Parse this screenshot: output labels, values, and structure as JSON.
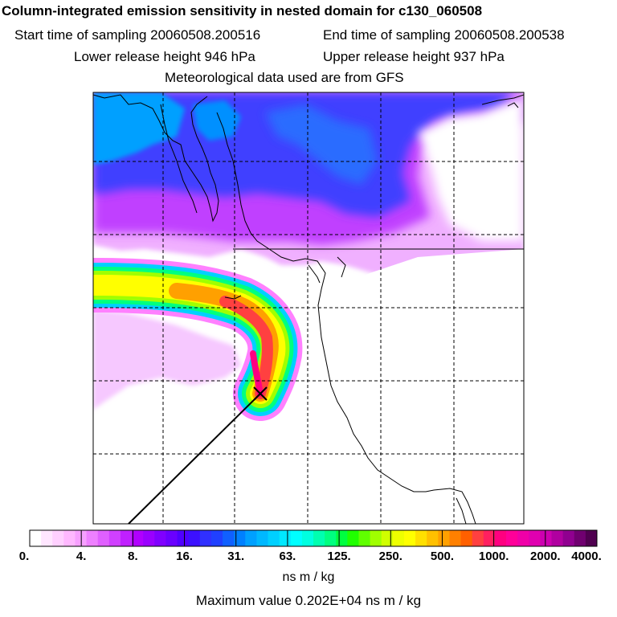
{
  "header": {
    "title": "Column-integrated emission sensitivity in nested domain for c130_060508",
    "start_time": "Start time of sampling 20060508.200516",
    "end_time": "End time of sampling 20060508.200538",
    "lower_height": "Lower release height  946 hPa",
    "upper_height": "Upper release height  937 hPa",
    "met_data": "Meteorological data used are from GFS"
  },
  "colorbar": {
    "labels": [
      "0.",
      "4.",
      "8.",
      "16.",
      "31.",
      "63.",
      "125.",
      "250.",
      "500.",
      "1000.",
      "2000.",
      "4000."
    ],
    "colors": [
      "#ffffff",
      "#ffe6ff",
      "#ffd0ff",
      "#ffb8ff",
      "#f7a0ff",
      "#ee80ff",
      "#e060ff",
      "#d040ff",
      "#c020ff",
      "#b000ff",
      "#9a00ff",
      "#8000ff",
      "#6a00ff",
      "#5000ff",
      "#3c10ff",
      "#3030ff",
      "#2040ff",
      "#1060ff",
      "#0080ff",
      "#00a0ff",
      "#00b8ff",
      "#00d0ff",
      "#00e8ff",
      "#00ffff",
      "#00ffe0",
      "#00ffb0",
      "#00ff80",
      "#00ff40",
      "#20ff00",
      "#60ff00",
      "#a0ff00",
      "#d0ff00",
      "#eeff00",
      "#ffff00",
      "#ffe000",
      "#ffc000",
      "#ffa000",
      "#ff8000",
      "#ff6000",
      "#ff4040",
      "#ff2060",
      "#ff0080",
      "#ff0099",
      "#f000a8",
      "#e000b0",
      "#cc00b0",
      "#b000a0",
      "#900090",
      "#700070",
      "#500050"
    ],
    "units": "ns m / kg"
  },
  "max_value": "Maximum value  0.202E+04 ns m / kg"
}
